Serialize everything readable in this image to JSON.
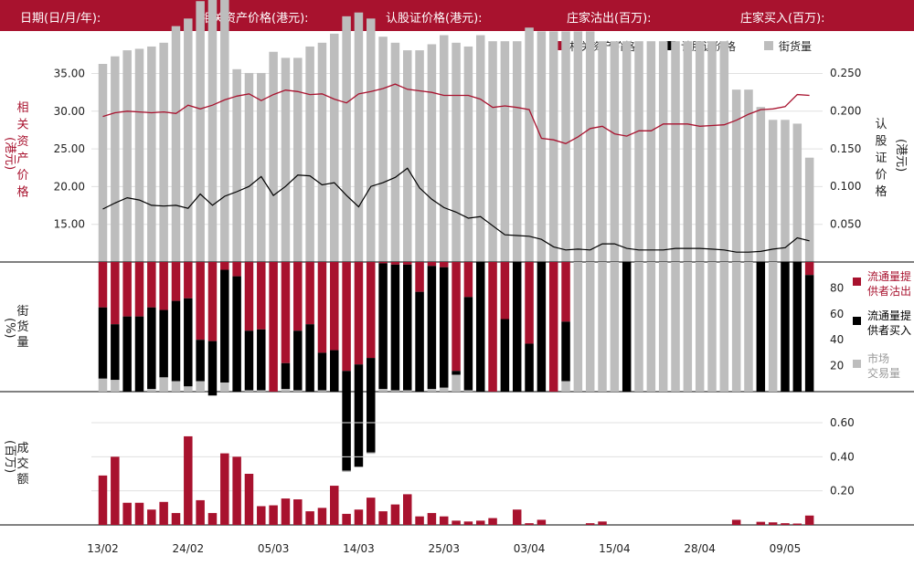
{
  "header": {
    "items": [
      "日期(日/月/年):",
      "相关资产价格(港元):",
      "认股证价格(港元):",
      "庄家沽出(百万):",
      "庄家买入(百万):"
    ]
  },
  "colors": {
    "brand": "#a8122e",
    "black": "#000000",
    "grey": "#bdbdbd",
    "grid": "#e0e0e0"
  },
  "chart_data": [
    {
      "type": "line",
      "legend": [
        "相关资产价格",
        "认股证价格",
        "街货量"
      ],
      "legend_position": "top-right",
      "ylabel_left": "相关资产价格(港元)",
      "ylabel_right": "认股证价格(港元)",
      "yticks_left": [
        "15.00",
        "20.00",
        "25.00",
        "30.00",
        "35.00"
      ],
      "yticks_right": [
        "0.050",
        "0.100",
        "0.150",
        "0.200",
        "0.250"
      ],
      "ylim_left": [
        10,
        37.5
      ],
      "ylim_right": [
        0,
        0.262
      ],
      "n_days": 59,
      "series": [
        {
          "name": "相关资产价格",
          "axis": "left",
          "values": [
            29.3,
            29.8,
            30.0,
            29.9,
            29.8,
            29.9,
            29.7,
            30.8,
            30.3,
            30.8,
            31.5,
            32.0,
            32.3,
            31.4,
            32.2,
            32.8,
            32.6,
            32.2,
            32.3,
            31.6,
            31.1,
            32.3,
            32.6,
            33.0,
            33.6,
            32.9,
            32.7,
            32.5,
            32.1,
            32.1,
            32.1,
            31.6,
            30.5,
            30.7,
            30.5,
            30.2,
            26.4,
            26.2,
            25.7,
            26.6,
            27.7,
            28.0,
            27.0,
            26.7,
            27.4,
            27.4,
            28.3,
            28.3,
            28.3,
            28.0,
            28.1,
            28.2,
            28.8,
            29.6,
            30.2,
            30.3,
            30.6,
            32.2,
            32.1
          ]
        },
        {
          "name": "认股证价格",
          "axis": "right",
          "values": [
            0.07,
            0.078,
            0.085,
            0.082,
            0.075,
            0.074,
            0.075,
            0.071,
            0.09,
            0.075,
            0.087,
            0.093,
            0.1,
            0.113,
            0.088,
            0.1,
            0.115,
            0.114,
            0.102,
            0.105,
            0.088,
            0.073,
            0.1,
            0.105,
            0.112,
            0.124,
            0.098,
            0.083,
            0.072,
            0.066,
            0.058,
            0.06,
            0.048,
            0.036,
            0.035,
            0.034,
            0.03,
            0.02,
            0.016,
            0.017,
            0.016,
            0.024,
            0.024,
            0.018,
            0.016,
            0.016,
            0.016,
            0.018,
            0.018,
            0.018,
            0.017,
            0.016,
            0.013,
            0.013,
            0.014,
            0.017,
            0.019,
            0.032,
            0.028
          ]
        },
        {
          "name": "街货量",
          "axis": "bar",
          "values": [
            0.262,
            0.272,
            0.28,
            0.282,
            0.285,
            0.29,
            0.312,
            0.322,
            0.345,
            0.358,
            0.348,
            0.255,
            0.25,
            0.25,
            0.278,
            0.27,
            0.27,
            0.285,
            0.29,
            0.302,
            0.325,
            0.33,
            0.322,
            0.298,
            0.29,
            0.28,
            0.28,
            0.288,
            0.3,
            0.29,
            0.285,
            0.3,
            0.292,
            0.292,
            0.292,
            0.31,
            0.305,
            0.305,
            0.305,
            0.305,
            0.305,
            0.292,
            0.292,
            0.292,
            0.292,
            0.292,
            0.292,
            0.292,
            0.292,
            0.292,
            0.292,
            0.292,
            0.228,
            0.228,
            0.205,
            0.188,
            0.188,
            0.183,
            0.138
          ]
        }
      ]
    },
    {
      "type": "bar",
      "legend": [
        "流通量提供者沽出",
        "流通量提供者买入",
        "市场交易量"
      ],
      "legend_position": "right",
      "ylabel": "街货量(%)",
      "yticks": [
        "20",
        "40",
        "60",
        "80"
      ],
      "ylim": [
        0,
        100
      ],
      "series": [
        {
          "name": "流通量提供者沽出",
          "values": [
            35,
            48,
            42,
            42,
            35,
            37,
            30,
            28,
            60,
            61,
            6,
            11,
            53,
            52,
            100,
            78,
            53,
            48,
            70,
            68,
            84,
            79,
            74,
            1,
            2,
            2,
            23,
            3,
            4,
            84,
            27,
            0,
            100,
            44,
            0,
            63,
            0,
            100,
            46,
            0,
            0,
            0,
            0,
            0,
            0,
            0,
            0,
            0,
            0,
            0,
            0,
            0,
            0,
            0,
            0,
            0,
            0,
            0,
            10
          ]
        },
        {
          "name": "流通量提供者买入",
          "values": [
            55,
            43,
            58,
            58,
            63,
            52,
            62,
            68,
            32,
            42,
            87,
            89,
            46,
            47,
            0,
            20,
            46,
            52,
            29,
            32,
            77,
            79,
            73,
            97,
            97,
            97,
            77,
            95,
            93,
            3,
            72,
            100,
            0,
            56,
            100,
            37,
            100,
            0,
            46,
            0,
            0,
            0,
            0,
            100,
            0,
            0,
            0,
            0,
            0,
            0,
            0,
            0,
            0,
            0,
            100,
            0,
            100,
            100,
            90
          ]
        },
        {
          "name": "市场交易量",
          "values": [
            10,
            9,
            0,
            0,
            2,
            11,
            8,
            4,
            8,
            0,
            7,
            0,
            1,
            1,
            0,
            2,
            1,
            0,
            1,
            0,
            1,
            0,
            1,
            2,
            1,
            1,
            0,
            2,
            3,
            13,
            1,
            0,
            0,
            0,
            0,
            0,
            0,
            0,
            8,
            100,
            100,
            100,
            100,
            0,
            100,
            100,
            100,
            100,
            100,
            100,
            100,
            100,
            100,
            100,
            0,
            100,
            0,
            0,
            0
          ]
        }
      ]
    },
    {
      "type": "bar",
      "ylabel": "成交额(百万)",
      "yticks": [
        "0.20",
        "0.40",
        "0.60"
      ],
      "ylim": [
        0,
        0.7
      ],
      "xtick_labels": [
        "13/02",
        "24/02",
        "05/03",
        "14/03",
        "25/03",
        "03/04",
        "15/04",
        "28/04",
        "09/05"
      ],
      "series": [
        {
          "name": "成交额",
          "values": [
            0.29,
            0.4,
            0.13,
            0.13,
            0.09,
            0.135,
            0.07,
            0.52,
            0.145,
            0.07,
            0.42,
            0.4,
            0.3,
            0.11,
            0.115,
            0.155,
            0.15,
            0.08,
            0.1,
            0.23,
            0.065,
            0.09,
            0.16,
            0.08,
            0.12,
            0.18,
            0.05,
            0.07,
            0.05,
            0.025,
            0.02,
            0.025,
            0.04,
            0,
            0.09,
            0.01,
            0.03,
            0,
            0,
            0,
            0.01,
            0.02,
            0,
            0,
            0,
            0,
            0,
            0,
            0,
            0,
            0,
            0,
            0.03,
            0,
            0.018,
            0.015,
            0.01,
            0.008,
            0.055
          ]
        }
      ]
    }
  ]
}
